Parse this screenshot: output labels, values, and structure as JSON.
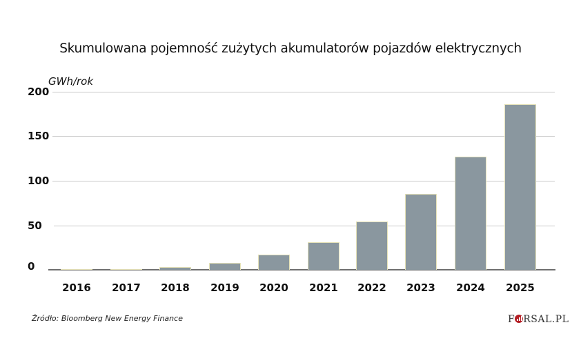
{
  "title": "Skumulowana pojemność zużytych akumulatorów pojazdów elektrycznych",
  "unit_label": "GWh/rok",
  "source": "Źródło: Bloomberg New Energy Finance",
  "logo": {
    "prefix": "F",
    "suffix": "RSAL.PL",
    "accent": "#b31e24"
  },
  "colors": {
    "bar": "#8a979f",
    "bar_outline": "#e6e2b8",
    "grid": "#c8c8c8",
    "baseline": "#6e6e6e"
  },
  "y_ticks": [
    "200",
    "150",
    "100",
    "50",
    "0"
  ],
  "x_ticks": [
    "2016",
    "2017",
    "2018",
    "2019",
    "2020",
    "2021",
    "2022",
    "2023",
    "2024",
    "2025"
  ],
  "chart_data": {
    "type": "bar",
    "title": "Skumulowana pojemność zużytych akumulatorów pojazdów elektrycznych",
    "xlabel": "",
    "ylabel": "GWh/rok",
    "categories": [
      "2016",
      "2017",
      "2018",
      "2019",
      "2020",
      "2021",
      "2022",
      "2023",
      "2024",
      "2025"
    ],
    "values": [
      0,
      0.5,
      3,
      8,
      17,
      31,
      54,
      85,
      127,
      186
    ],
    "ylim": [
      0,
      200
    ],
    "yticks": [
      0,
      50,
      100,
      150,
      200
    ],
    "grid": true,
    "legend": null,
    "source": "Bloomberg New Energy Finance"
  }
}
